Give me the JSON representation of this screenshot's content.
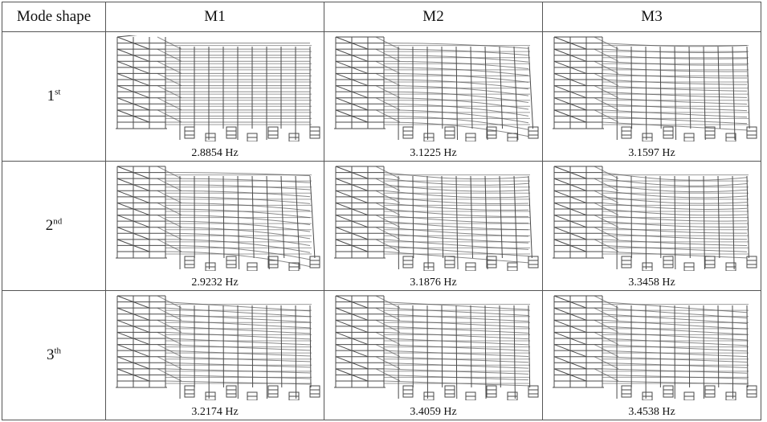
{
  "table": {
    "header": {
      "mode_shape": "Mode shape",
      "models": [
        "M1",
        "M2",
        "M3"
      ]
    },
    "rows": [
      {
        "ordinal": "1",
        "suffix": "st",
        "frequencies": [
          "2.8854 Hz",
          "3.1225 Hz",
          "3.1597 Hz"
        ]
      },
      {
        "ordinal": "2",
        "suffix": "nd",
        "frequencies": [
          "2.9232 Hz",
          "3.1876 Hz",
          "3.3458 Hz"
        ]
      },
      {
        "ordinal": "3",
        "suffix": "th",
        "frequencies": [
          "3.2174 Hz",
          "3.4059 Hz",
          "3.4538 Hz"
        ]
      }
    ]
  },
  "colors": {
    "structure": "#4a4a4a",
    "deformed": "#8a8a8a",
    "border": "#555555"
  }
}
